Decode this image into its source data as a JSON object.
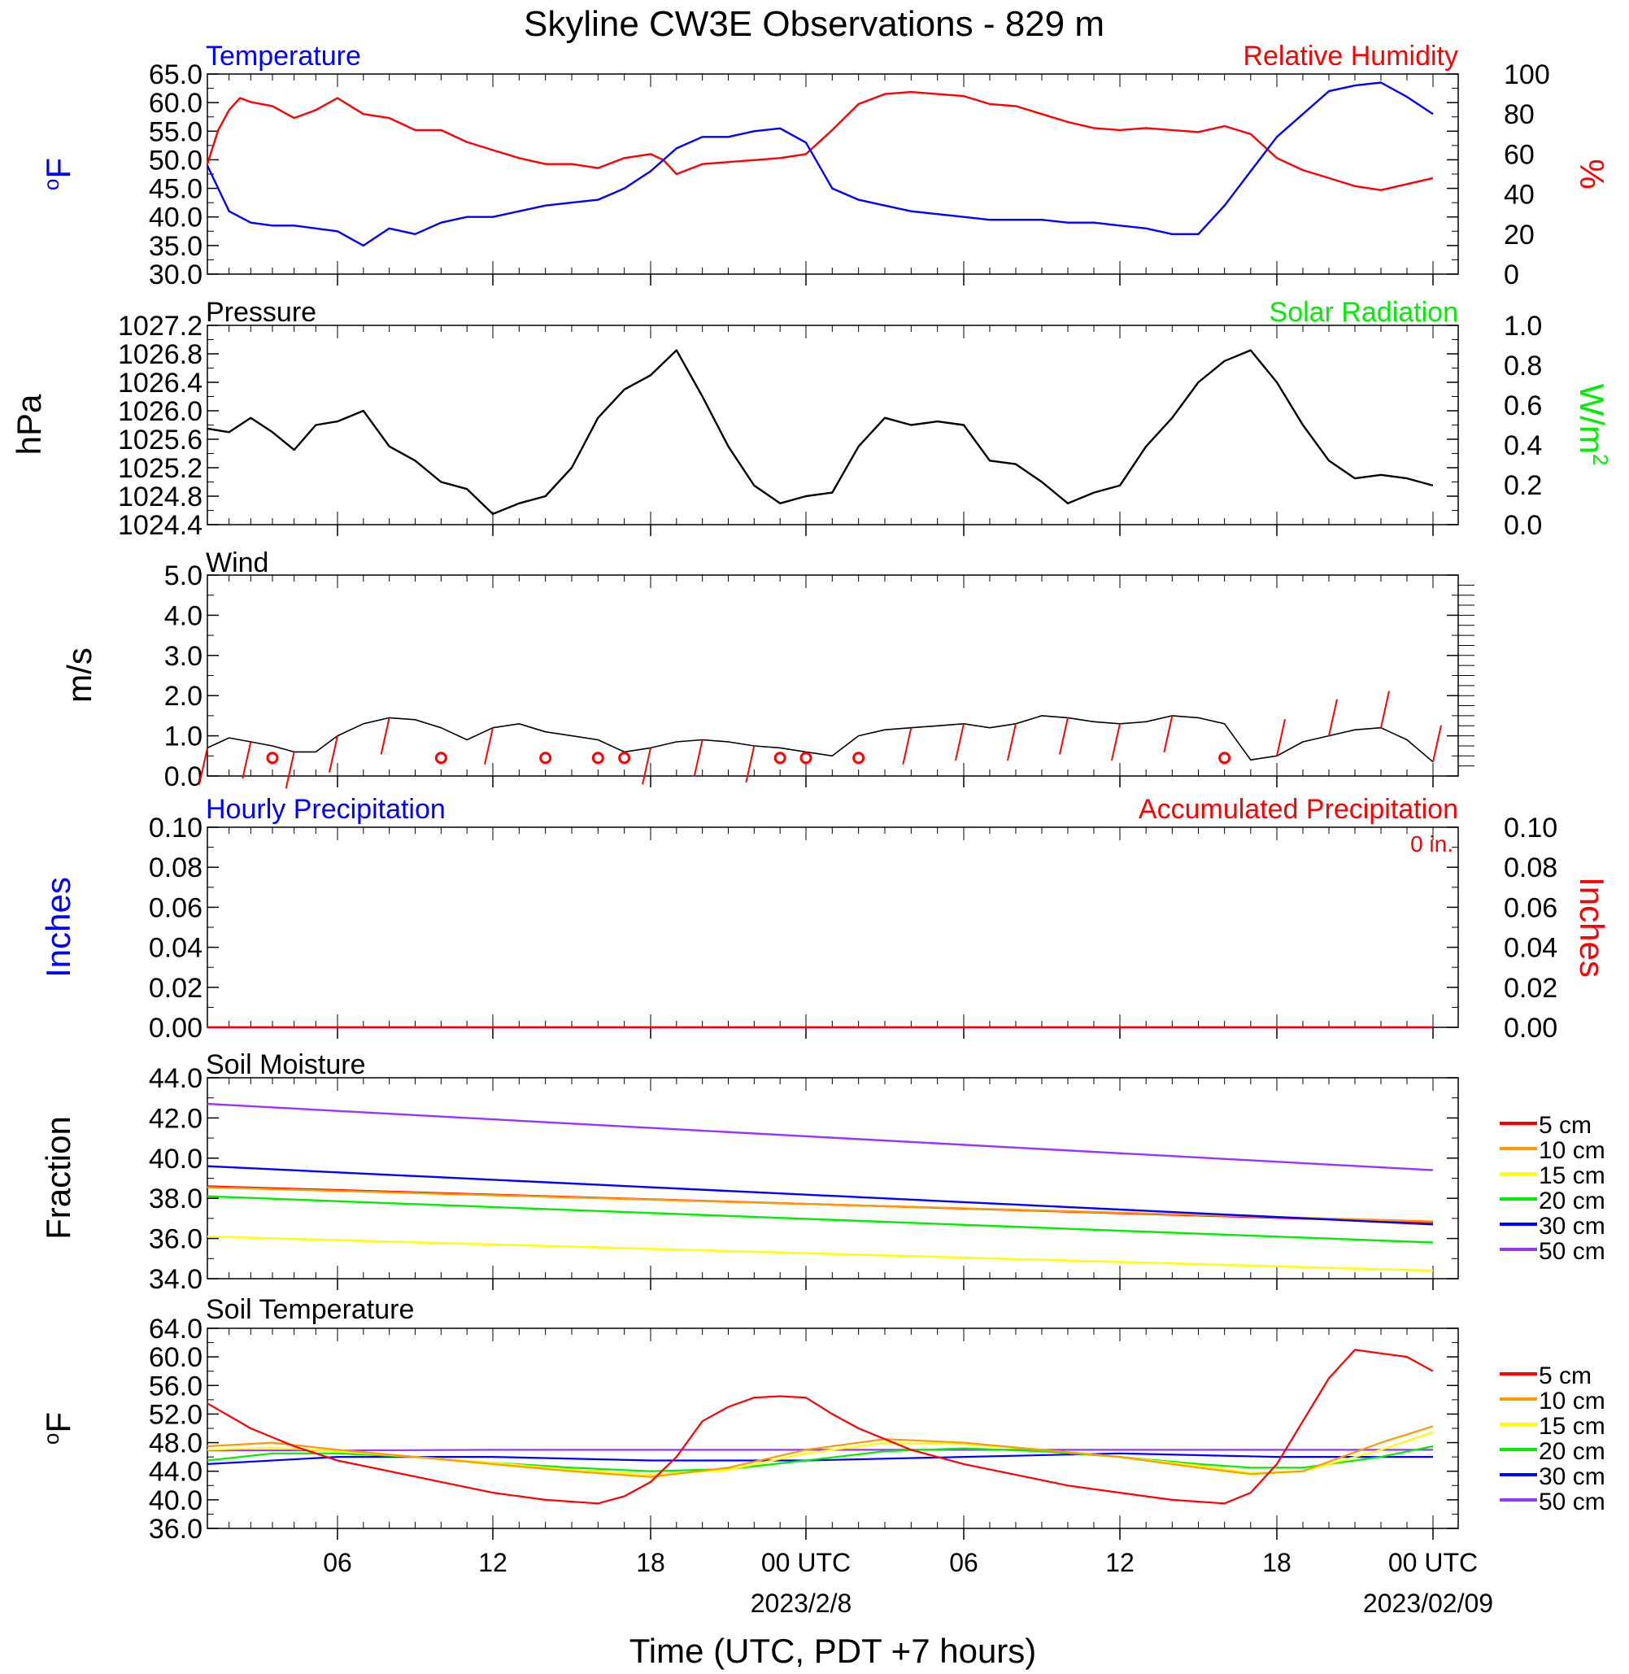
{
  "title": "Skyline CW3E Observations - 829 m",
  "x_axis": {
    "label": "Time (UTC, PDT +7 hours)",
    "ticks": [
      "06",
      "12",
      "18",
      "00 UTC",
      "06",
      "12",
      "18",
      "00 UTC"
    ],
    "dates": [
      "2023/2/8",
      "2023/02/09"
    ]
  },
  "chart_data": [
    {
      "panel": "Temperature / Relative Humidity",
      "type": "line",
      "title_left": "Temperature",
      "title_right": "Relative Humidity",
      "ylabel_left": "oF",
      "ylabel_right": "%",
      "x_unit": "hours from 2023-02-07 01 UTC",
      "ylim_left": [
        30,
        65
      ],
      "ylim_right": [
        0,
        100
      ],
      "yticks_left": [
        "65.0",
        "60.0",
        "55.0",
        "50.0",
        "45.0",
        "40.0",
        "35.0",
        "30.0"
      ],
      "yticks_right": [
        "100",
        "80",
        "60",
        "40",
        "20",
        "0"
      ],
      "colors": {
        "temperature": "#0000ff",
        "humidity": "#ff0000"
      },
      "series": [
        {
          "name": "Temperature",
          "axis": "left",
          "x": [
            0,
            0.5,
            1,
            2,
            3,
            4,
            5,
            6,
            7,
            8,
            9,
            10,
            11,
            12,
            13,
            14,
            15,
            16,
            17,
            18,
            19,
            20,
            21,
            22,
            23,
            24,
            25,
            26,
            27,
            28,
            29,
            30,
            31,
            32,
            33,
            34,
            35,
            36,
            37,
            38,
            39,
            40,
            41,
            42,
            43,
            44,
            45,
            46,
            47,
            48
          ],
          "y": [
            49,
            45,
            41,
            39,
            38.5,
            38.5,
            38,
            37.5,
            35,
            38,
            37,
            39,
            40,
            40,
            41,
            42,
            42.5,
            43,
            45,
            48,
            52,
            54,
            54,
            55,
            55.5,
            53,
            45,
            43,
            42,
            41,
            40.5,
            40,
            39.5,
            39.5,
            39.5,
            39,
            39,
            38.5,
            38,
            37,
            37,
            42,
            48,
            54,
            58,
            62,
            63,
            63.5,
            61,
            58
          ]
        },
        {
          "name": "Relative Humidity",
          "axis": "right",
          "x": [
            0,
            0.5,
            1,
            1.5,
            2,
            3,
            4,
            5,
            6,
            7,
            8,
            9,
            10,
            11,
            12,
            13,
            14,
            15,
            16,
            17,
            18,
            18.5,
            19,
            20,
            21,
            22,
            23,
            24,
            25,
            26,
            27,
            28,
            29,
            30,
            31,
            32,
            33,
            34,
            35,
            36,
            37,
            38,
            39,
            40,
            41,
            42,
            43,
            44,
            45,
            46,
            47,
            48
          ],
          "y": [
            55,
            72,
            82,
            88,
            86,
            84,
            78,
            82,
            88,
            80,
            78,
            72,
            72,
            66,
            62,
            58,
            55,
            55,
            53,
            58,
            60,
            57,
            50,
            55,
            56,
            57,
            58,
            60,
            72,
            85,
            90,
            91,
            90,
            89,
            85,
            84,
            80,
            76,
            73,
            72,
            73,
            72,
            71,
            74,
            70,
            58,
            52,
            48,
            44,
            42,
            45,
            48
          ]
        }
      ]
    },
    {
      "panel": "Pressure / Solar Radiation",
      "type": "line",
      "title_left": "Pressure",
      "title_right": "Solar Radiation",
      "ylabel_left": "hPa",
      "ylabel_right": "W/m2",
      "ylim_left": [
        1024.4,
        1027.2
      ],
      "ylim_right": [
        0,
        1
      ],
      "yticks_left": [
        "1027.2",
        "1026.8",
        "1026.4",
        "1026.0",
        "1025.6",
        "1025.2",
        "1024.8",
        "1024.4"
      ],
      "yticks_right": [
        "1.0",
        "0.8",
        "0.6",
        "0.4",
        "0.2",
        "0.0"
      ],
      "series": [
        {
          "name": "Pressure",
          "axis": "left",
          "x": [
            0,
            1,
            2,
            3,
            4,
            5,
            6,
            7,
            8,
            9,
            10,
            11,
            12,
            13,
            14,
            15,
            16,
            17,
            18,
            19,
            20,
            21,
            22,
            23,
            24,
            25,
            26,
            27,
            28,
            29,
            30,
            31,
            32,
            33,
            34,
            35,
            36,
            37,
            38,
            39,
            40,
            41,
            42,
            43,
            44,
            45,
            46,
            47,
            48
          ],
          "y": [
            1025.75,
            1025.7,
            1025.9,
            1025.7,
            1025.45,
            1025.8,
            1025.85,
            1026.0,
            1025.5,
            1025.3,
            1025.0,
            1024.9,
            1024.55,
            1024.7,
            1024.8,
            1025.2,
            1025.9,
            1026.3,
            1026.5,
            1026.85,
            1026.2,
            1025.5,
            1024.95,
            1024.7,
            1024.8,
            1024.85,
            1025.5,
            1025.9,
            1025.8,
            1025.85,
            1025.8,
            1025.3,
            1025.25,
            1025.0,
            1024.7,
            1024.85,
            1024.95,
            1025.5,
            1025.9,
            1026.4,
            1026.7,
            1026.85,
            1026.4,
            1025.8,
            1025.3,
            1025.05,
            1025.1,
            1025.05,
            1024.95
          ]
        }
      ]
    },
    {
      "panel": "Wind",
      "type": "line",
      "title_left": "Wind",
      "ylabel_left": "m/s",
      "ylim": [
        0,
        5
      ],
      "yticks": [
        "5.0",
        "4.0",
        "3.0",
        "2.0",
        "1.0",
        "0.0"
      ],
      "series": [
        {
          "name": "Wind speed",
          "x": [
            0,
            1,
            2,
            3,
            4,
            5,
            6,
            7,
            8,
            9,
            10,
            11,
            12,
            13,
            14,
            15,
            16,
            17,
            18,
            19,
            20,
            21,
            22,
            23,
            24,
            25,
            26,
            27,
            28,
            29,
            30,
            31,
            32,
            33,
            34,
            35,
            36,
            37,
            38,
            39,
            40,
            41,
            42,
            43,
            44,
            45,
            46,
            47,
            48
          ],
          "y": [
            0.7,
            0.95,
            0.85,
            0.75,
            0.6,
            0.6,
            1.0,
            1.3,
            1.45,
            1.4,
            1.2,
            0.9,
            1.2,
            1.3,
            1.1,
            1.0,
            0.9,
            0.6,
            0.7,
            0.85,
            0.9,
            0.85,
            0.75,
            0.7,
            0.6,
            0.5,
            1.0,
            1.15,
            1.2,
            1.25,
            1.3,
            1.2,
            1.3,
            1.5,
            1.45,
            1.35,
            1.3,
            1.35,
            1.5,
            1.45,
            1.3,
            0.4,
            0.5,
            0.85,
            1.0,
            1.15,
            1.2,
            0.9,
            0.35
          ]
        }
      ],
      "calm_markers_hours": [
        3,
        10,
        14,
        16,
        17,
        23,
        24,
        26,
        40
      ]
    },
    {
      "panel": "Precipitation",
      "type": "line",
      "title_left": "Hourly Precipitation",
      "title_right": "Accumulated Precipitation",
      "annotation": "0 in.",
      "ylabel_left": "Inches",
      "ylabel_right": "Inches",
      "ylim_left": [
        0,
        0.1
      ],
      "ylim_right": [
        0,
        0.1
      ],
      "yticks_left": [
        "0.10",
        "0.08",
        "0.06",
        "0.04",
        "0.02",
        "0.00"
      ],
      "yticks_right": [
        "0.10",
        "0.08",
        "0.06",
        "0.04",
        "0.02",
        "0.00"
      ],
      "series": [
        {
          "name": "Hourly Precipitation",
          "x": [
            0,
            48
          ],
          "y": [
            0,
            0
          ]
        },
        {
          "name": "Accumulated Precipitation",
          "x": [
            0,
            48
          ],
          "y": [
            0,
            0
          ]
        }
      ]
    },
    {
      "panel": "Soil Moisture",
      "type": "line",
      "title_left": "Soil Moisture",
      "ylabel_left": "Fraction",
      "ylim": [
        34,
        44
      ],
      "yticks": [
        "44.0",
        "42.0",
        "40.0",
        "38.0",
        "36.0",
        "34.0"
      ],
      "legend": [
        "5 cm",
        "10 cm",
        "15 cm",
        "20 cm",
        "30 cm",
        "50 cm"
      ],
      "legend_colors": [
        "#ff0000",
        "#ff9900",
        "#ffff00",
        "#00ee00",
        "#0000ff",
        "#9933ff"
      ],
      "series": [
        {
          "name": "5 cm",
          "x": [
            0,
            48
          ],
          "y": [
            38.6,
            36.8
          ]
        },
        {
          "name": "10 cm",
          "x": [
            0,
            48
          ],
          "y": [
            38.55,
            36.85
          ]
        },
        {
          "name": "15 cm",
          "x": [
            0,
            48
          ],
          "y": [
            36.1,
            34.4
          ]
        },
        {
          "name": "20 cm",
          "x": [
            0,
            48
          ],
          "y": [
            38.1,
            35.8
          ]
        },
        {
          "name": "30 cm",
          "x": [
            0,
            48
          ],
          "y": [
            39.6,
            36.7
          ]
        },
        {
          "name": "50 cm",
          "x": [
            0,
            48
          ],
          "y": [
            42.7,
            39.4
          ]
        }
      ]
    },
    {
      "panel": "Soil Temperature",
      "type": "line",
      "title_left": "Soil Temperature",
      "ylabel_left": "oF",
      "ylim": [
        36,
        64
      ],
      "yticks": [
        "64.0",
        "60.0",
        "56.0",
        "52.0",
        "48.0",
        "44.0",
        "40.0",
        "36.0"
      ],
      "legend": [
        "5 cm",
        "10 cm",
        "15 cm",
        "20 cm",
        "30 cm",
        "50 cm"
      ],
      "legend_colors": [
        "#ff0000",
        "#ff9900",
        "#ffff00",
        "#00ee00",
        "#0000ff",
        "#9933ff"
      ],
      "series": [
        {
          "name": "5 cm",
          "x": [
            0,
            2,
            4,
            6,
            8,
            10,
            12,
            14,
            16,
            17,
            18,
            19,
            20,
            21,
            22,
            23,
            24,
            25,
            26,
            27,
            28,
            30,
            32,
            34,
            36,
            38,
            40,
            41,
            42,
            43,
            44,
            45,
            46,
            47,
            48
          ],
          "y": [
            53.5,
            50,
            47.5,
            45.5,
            44,
            42.5,
            41,
            40,
            39.5,
            40.5,
            42.5,
            46,
            51,
            53,
            54.3,
            54.5,
            54.3,
            52,
            50,
            48.5,
            47,
            45,
            43.5,
            42,
            41,
            40,
            39.5,
            41,
            45,
            51,
            57,
            61,
            60.5,
            60,
            58
          ]
        },
        {
          "name": "10 cm",
          "x": [
            0,
            3,
            6,
            9,
            12,
            15,
            18,
            21,
            24,
            27,
            30,
            33,
            36,
            39,
            41,
            43,
            46,
            48
          ],
          "y": [
            47.5,
            48,
            47,
            46,
            45,
            44,
            43.2,
            44.5,
            47,
            48.5,
            48,
            47,
            46,
            44.5,
            43.6,
            44,
            48,
            50.3
          ]
        },
        {
          "name": "15 cm",
          "x": [
            0,
            3,
            6,
            9,
            12,
            15,
            18,
            21,
            24,
            27,
            30,
            33,
            36,
            39,
            41,
            43,
            46,
            48
          ],
          "y": [
            47,
            47.3,
            46.8,
            46,
            45.2,
            44.2,
            43.5,
            44.2,
            46.5,
            48,
            47.8,
            47,
            46,
            44.8,
            43.8,
            44,
            47,
            49.5
          ]
        },
        {
          "name": "20 cm",
          "x": [
            0,
            3,
            6,
            9,
            12,
            15,
            18,
            21,
            24,
            27,
            30,
            33,
            36,
            39,
            41,
            43,
            46,
            48
          ],
          "y": [
            45.5,
            46.5,
            46.5,
            46,
            45.2,
            44.5,
            44,
            44.3,
            45.5,
            46.8,
            47.2,
            46.8,
            46,
            45,
            44.5,
            44.5,
            46,
            47.5
          ]
        },
        {
          "name": "30 cm",
          "x": [
            0,
            6,
            12,
            18,
            24,
            30,
            36,
            42,
            48
          ],
          "y": [
            45,
            46,
            46,
            45.5,
            45.5,
            46,
            46.5,
            46,
            46
          ]
        },
        {
          "name": "50 cm",
          "x": [
            0,
            6,
            12,
            18,
            24,
            30,
            36,
            42,
            48
          ],
          "y": [
            46.9,
            46.9,
            47,
            47,
            47,
            47,
            47,
            47,
            47
          ]
        }
      ]
    }
  ]
}
